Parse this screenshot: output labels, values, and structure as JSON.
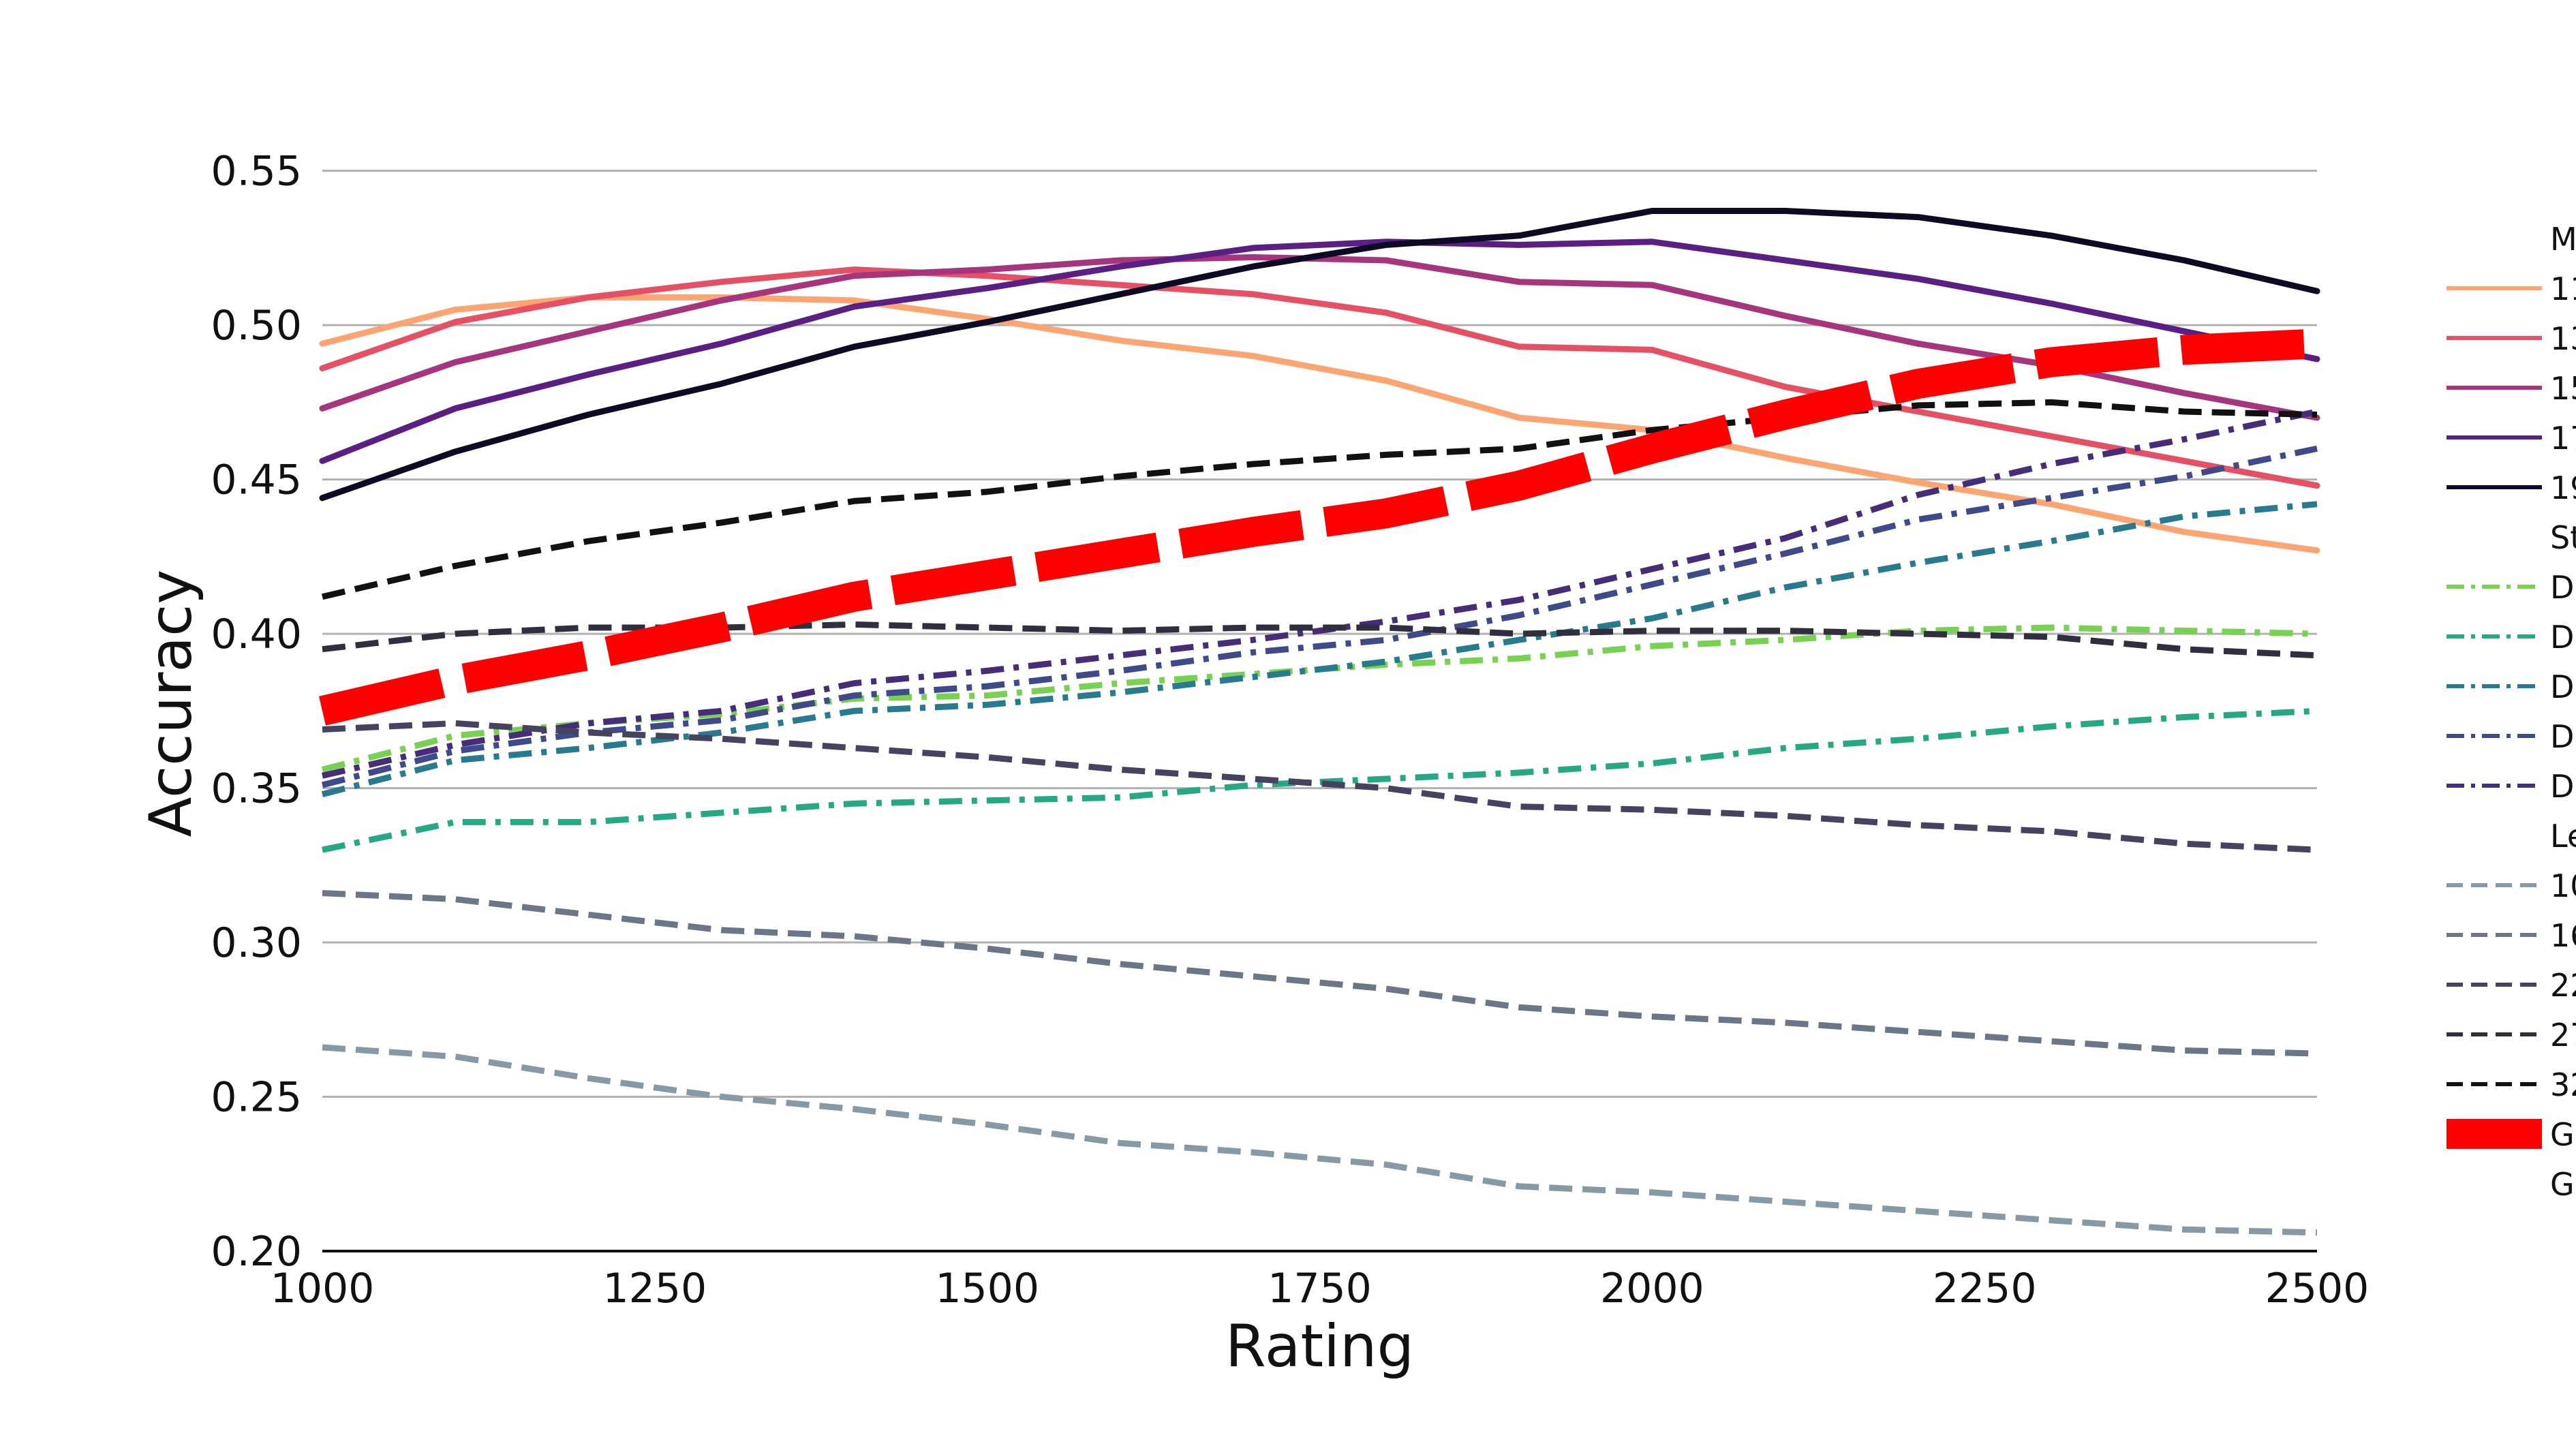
{
  "chart_data": {
    "type": "line",
    "title": "",
    "xlabel": "Rating",
    "ylabel": "Accuracy",
    "xlim": [
      1000,
      2500
    ],
    "ylim": [
      0.2,
      0.555
    ],
    "xticks": [
      1000,
      1250,
      1500,
      1750,
      2000,
      2250,
      2500
    ],
    "xtick_labels": [
      "1000",
      "1250",
      "1500",
      "1750",
      "2000",
      "2250",
      "2500"
    ],
    "yticks": [
      0.2,
      0.25,
      0.3,
      0.35,
      0.4,
      0.45,
      0.5,
      0.55
    ],
    "ytick_labels": [
      "0.20",
      "0.25",
      "0.30",
      "0.35",
      "0.40",
      "0.45",
      "0.50",
      "0.55"
    ],
    "grid": "horizontal",
    "legend_position": "right (clipped at image edge)",
    "x": [
      1000,
      1100,
      1200,
      1300,
      1400,
      1500,
      1600,
      1700,
      1800,
      1900,
      2000,
      2100,
      2200,
      2300,
      2400,
      2500
    ],
    "legend_groups": [
      {
        "heading": "Ma",
        "entries": [
          "11",
          "13",
          "15",
          "17",
          "19"
        ]
      },
      {
        "heading": "Ste",
        "entries": [
          "De",
          "De",
          "De",
          "De",
          "De"
        ]
      },
      {
        "heading": "Le",
        "entries": [
          "10",
          "16",
          "22",
          "27",
          "32"
        ]
      },
      {
        "heading": "",
        "entries": [
          "GM",
          "GM"
        ]
      }
    ],
    "series": [
      {
        "name": "11",
        "color": "#fca572",
        "style": "solid",
        "width": "normal",
        "values": [
          0.494,
          0.505,
          0.509,
          0.509,
          0.508,
          0.502,
          0.495,
          0.49,
          0.482,
          0.47,
          0.466,
          0.457,
          0.449,
          0.442,
          0.433,
          0.427
        ]
      },
      {
        "name": "13",
        "color": "#e55064",
        "style": "solid",
        "width": "normal",
        "values": [
          0.486,
          0.501,
          0.509,
          0.514,
          0.518,
          0.516,
          0.513,
          0.51,
          0.504,
          0.493,
          0.492,
          0.48,
          0.472,
          0.464,
          0.456,
          0.448
        ]
      },
      {
        "name": "15",
        "color": "#a6347f",
        "style": "solid",
        "width": "normal",
        "values": [
          0.473,
          0.488,
          0.498,
          0.508,
          0.516,
          0.518,
          0.521,
          0.522,
          0.521,
          0.514,
          0.513,
          0.503,
          0.494,
          0.487,
          0.478,
          0.47
        ]
      },
      {
        "name": "17",
        "color": "#5b1e82",
        "style": "solid",
        "width": "normal",
        "values": [
          0.456,
          0.473,
          0.484,
          0.494,
          0.506,
          0.512,
          0.519,
          0.525,
          0.527,
          0.526,
          0.527,
          0.521,
          0.515,
          0.507,
          0.498,
          0.489
        ]
      },
      {
        "name": "19",
        "color": "#0e0a25",
        "style": "solid",
        "width": "normal",
        "values": [
          0.444,
          0.459,
          0.471,
          0.481,
          0.493,
          0.501,
          0.51,
          0.519,
          0.526,
          0.529,
          0.537,
          0.537,
          0.535,
          0.529,
          0.521,
          0.511
        ]
      },
      {
        "name": "De",
        "color": "#79d151",
        "style": "dashdot",
        "width": "normal",
        "values": [
          0.356,
          0.367,
          0.371,
          0.374,
          0.379,
          0.38,
          0.384,
          0.387,
          0.39,
          0.392,
          0.396,
          0.398,
          0.401,
          0.402,
          0.401,
          0.4
        ]
      },
      {
        "name": "De",
        "color": "#26a884",
        "style": "dashdot",
        "width": "normal",
        "values": [
          0.33,
          0.339,
          0.339,
          0.342,
          0.345,
          0.346,
          0.347,
          0.351,
          0.353,
          0.355,
          0.358,
          0.363,
          0.366,
          0.37,
          0.373,
          0.375
        ]
      },
      {
        "name": "De",
        "color": "#287a8e",
        "style": "dashdot",
        "width": "normal",
        "values": [
          0.348,
          0.359,
          0.363,
          0.368,
          0.375,
          0.377,
          0.381,
          0.386,
          0.391,
          0.398,
          0.405,
          0.415,
          0.423,
          0.43,
          0.438,
          0.442
        ]
      },
      {
        "name": "De",
        "color": "#3e4a89",
        "style": "dashdot",
        "width": "normal",
        "values": [
          0.351,
          0.362,
          0.368,
          0.372,
          0.38,
          0.383,
          0.388,
          0.394,
          0.398,
          0.406,
          0.416,
          0.426,
          0.437,
          0.444,
          0.451,
          0.46
        ]
      },
      {
        "name": "De",
        "color": "#472c7a",
        "style": "dashdot",
        "width": "normal",
        "values": [
          0.354,
          0.364,
          0.371,
          0.375,
          0.384,
          0.388,
          0.393,
          0.398,
          0.404,
          0.411,
          0.421,
          0.431,
          0.445,
          0.455,
          0.463,
          0.472
        ]
      },
      {
        "name": "10",
        "color": "#8899a6",
        "style": "dashed",
        "width": "normal",
        "values": [
          0.266,
          0.263,
          0.256,
          0.25,
          0.246,
          0.241,
          0.235,
          0.232,
          0.228,
          0.221,
          0.219,
          0.216,
          0.213,
          0.21,
          0.207,
          0.206
        ]
      },
      {
        "name": "16",
        "color": "#6b7687",
        "style": "dashed",
        "width": "normal",
        "values": [
          0.316,
          0.314,
          0.309,
          0.304,
          0.302,
          0.298,
          0.293,
          0.289,
          0.285,
          0.279,
          0.276,
          0.274,
          0.271,
          0.268,
          0.265,
          0.264
        ]
      },
      {
        "name": "22",
        "color": "#454360",
        "style": "dashed",
        "width": "normal",
        "values": [
          0.369,
          0.371,
          0.368,
          0.366,
          0.363,
          0.36,
          0.356,
          0.353,
          0.35,
          0.344,
          0.343,
          0.341,
          0.338,
          0.336,
          0.332,
          0.33
        ]
      },
      {
        "name": "27",
        "color": "#2f2f3f",
        "style": "dashed",
        "width": "normal",
        "values": [
          0.395,
          0.4,
          0.402,
          0.402,
          0.403,
          0.402,
          0.401,
          0.402,
          0.402,
          0.4,
          0.401,
          0.401,
          0.4,
          0.399,
          0.395,
          0.393
        ]
      },
      {
        "name": "32",
        "color": "#111111",
        "style": "dashed",
        "width": "normal",
        "values": [
          0.412,
          0.422,
          0.43,
          0.436,
          0.443,
          0.446,
          0.451,
          0.455,
          0.458,
          0.46,
          0.466,
          0.47,
          0.474,
          0.475,
          0.472,
          0.471
        ]
      },
      {
        "name": "GM",
        "color": "#ff0000",
        "style": "bold-dashed",
        "width": "thick",
        "values": [
          0.375,
          0.385,
          0.393,
          0.402,
          0.412,
          0.419,
          0.426,
          0.433,
          0.439,
          0.448,
          0.46,
          0.471,
          0.481,
          0.488,
          0.492,
          0.494
        ]
      }
    ]
  }
}
